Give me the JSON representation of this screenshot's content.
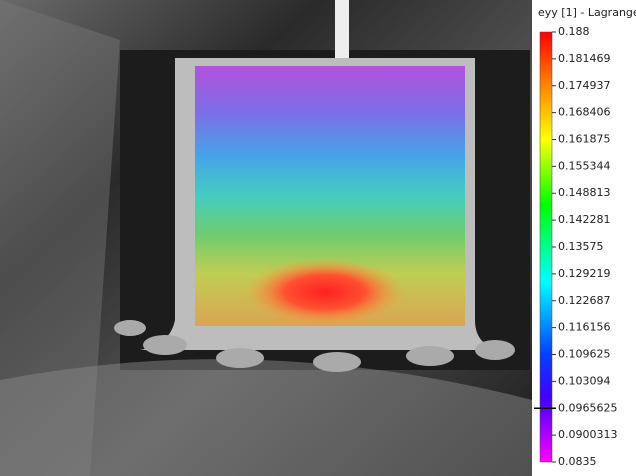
{
  "colorbar": {
    "title": "eyy [1] - Lagrange",
    "ticks": [
      0.188,
      0.181469,
      0.174937,
      0.168406,
      0.161875,
      0.155344,
      0.148813,
      0.142281,
      0.13575,
      0.129219,
      0.122687,
      0.116156,
      0.109625,
      0.103094,
      0.0965625,
      0.0900313,
      0.0835
    ],
    "marker": 0.0965625
  }
}
